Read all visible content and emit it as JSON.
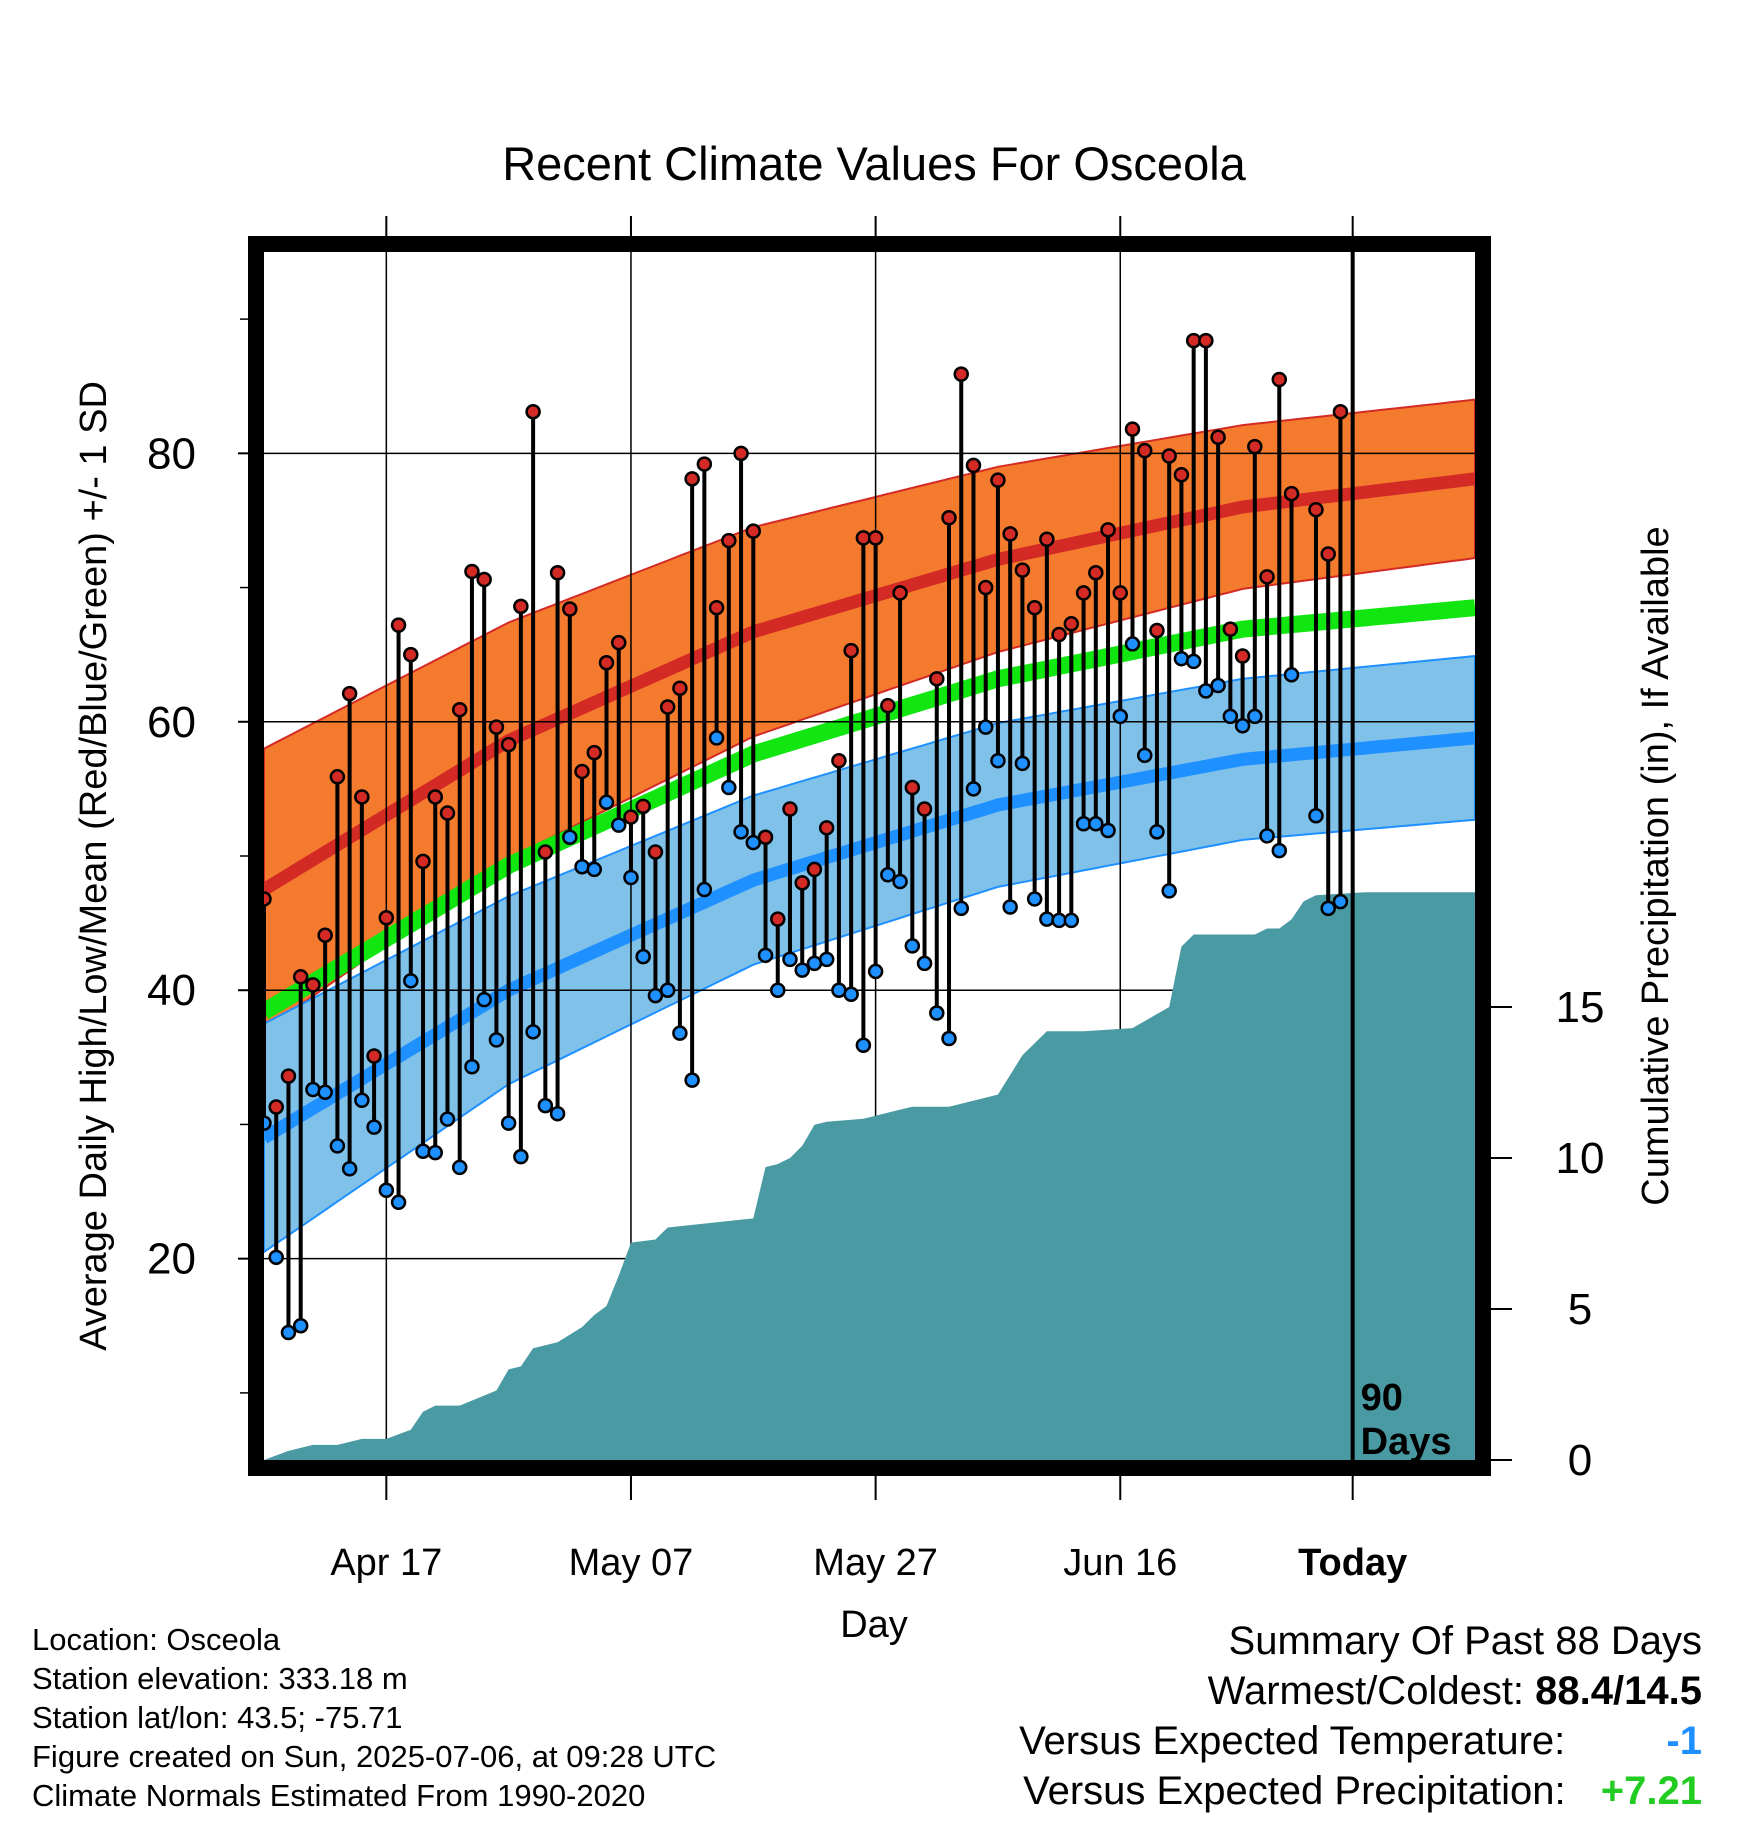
{
  "title": "Recent Climate Values For Osceola",
  "info": {
    "location": "Location: Osceola",
    "elevation": "Station elevation: 333.18 m",
    "latlon": "Station lat/lon: 43.5; -75.71",
    "created": "Figure created on Sun, 2025-07-06, at 09:28 UTC",
    "normals": "Climate Normals Estimated From 1990-2020"
  },
  "summary": {
    "heading": "Summary Of Past 88 Days",
    "warmest_coldest_label": "Warmest/Coldest:",
    "warmest_coldest_value": "88.4/14.5",
    "temp_label": "Versus Expected Temperature:",
    "temp_value": "-1",
    "temp_color": "#1e90ff",
    "precip_label": "Versus Expected Precipitation:",
    "precip_value": "+7.21",
    "precip_color": "#22cc22"
  },
  "chart_data": {
    "type": "line",
    "title": "Recent Climate Values For Osceola",
    "xlabel": "Day",
    "ylabel_left": "Average Daily High/Low/Mean (Red/Blue/Green) +/- 1 SD",
    "ylabel_right": "Cumulative Precipitation (in), If Available",
    "x_range": [
      "Apr 07",
      "Jul 15"
    ],
    "x_ticks": [
      "Apr 17",
      "May 07",
      "May 27",
      "Jun 16",
      "Today"
    ],
    "ylim_left": [
      5,
      95
    ],
    "yticks_left": [
      20,
      40,
      60,
      80
    ],
    "ylim_right": [
      0,
      40
    ],
    "yticks_right": [
      0,
      5,
      10,
      15
    ],
    "today_marker": "Today",
    "today_label": "90\nDays",
    "normals": {
      "x": [
        "Apr 07",
        "Apr 27",
        "May 17",
        "Jun 06",
        "Jun 26",
        "Jul 15"
      ],
      "high_mean": [
        47.5,
        58.6,
        66.7,
        72.1,
        76.0,
        78.1
      ],
      "high_sd": [
        10.5,
        8.8,
        7.8,
        6.9,
        6.1,
        5.9
      ],
      "mean": [
        38.4,
        49.3,
        57.6,
        63.2,
        66.9,
        68.5
      ],
      "low_mean": [
        29.0,
        40.0,
        48.2,
        53.8,
        57.2,
        58.8
      ],
      "low_sd": [
        8.5,
        7.0,
        6.3,
        6.1,
        6.0,
        6.1
      ],
      "colors": {
        "high_band": "#f47b2e",
        "high_line": "#d42a25",
        "mean": "#11e611",
        "low_band": "#80c1ea",
        "low_line": "#1e90ff",
        "precip": "#4a9aa4"
      }
    },
    "daily": {
      "start": "Apr 07",
      "high": [
        46.8,
        31.3,
        33.6,
        41.0,
        40.4,
        44.1,
        55.9,
        62.1,
        54.4,
        35.1,
        45.4,
        67.2,
        65.0,
        49.6,
        54.4,
        53.2,
        60.9,
        71.2,
        70.6,
        59.6,
        58.3,
        68.6,
        83.1,
        50.3,
        71.1,
        68.4,
        56.3,
        57.7,
        64.4,
        65.9,
        52.9,
        53.7,
        50.3,
        61.1,
        62.5,
        78.1,
        79.2,
        68.5,
        73.5,
        80.0,
        74.2,
        51.4,
        45.3,
        53.5,
        48.0,
        49.0,
        52.1,
        57.1,
        65.3,
        73.7,
        73.7,
        61.2,
        69.6,
        55.1,
        53.5,
        63.2,
        75.2,
        85.9,
        79.1,
        70.0,
        78.0,
        74.0,
        71.3,
        68.5,
        73.6,
        66.5,
        67.3,
        69.6,
        71.1,
        74.3,
        69.6,
        81.8,
        80.2,
        66.8,
        79.8,
        78.4,
        88.4,
        88.4,
        81.2,
        66.9,
        64.9,
        80.5,
        70.8,
        85.5,
        77.0,
        null,
        75.8,
        72.5,
        83.1
      ],
      "low": [
        30.1,
        20.1,
        14.5,
        15.0,
        32.6,
        32.4,
        28.4,
        26.7,
        31.8,
        29.8,
        25.1,
        24.2,
        40.7,
        28.0,
        27.9,
        30.4,
        26.8,
        34.3,
        39.3,
        36.3,
        30.1,
        27.6,
        36.9,
        31.4,
        30.8,
        51.4,
        49.2,
        49.0,
        54.0,
        52.3,
        48.4,
        42.5,
        39.6,
        40.0,
        36.8,
        33.3,
        47.5,
        58.8,
        55.1,
        51.8,
        51.0,
        42.6,
        40.0,
        42.3,
        41.5,
        42.0,
        42.3,
        40.0,
        39.7,
        35.9,
        41.4,
        48.6,
        48.1,
        43.3,
        42.0,
        38.3,
        36.4,
        46.1,
        55.0,
        59.6,
        57.1,
        46.2,
        56.9,
        46.8,
        45.3,
        45.2,
        45.2,
        52.4,
        52.4,
        51.9,
        60.4,
        65.8,
        57.5,
        51.8,
        47.4,
        64.7,
        64.5,
        62.3,
        62.7,
        60.4,
        59.7,
        60.4,
        51.5,
        50.4,
        63.5,
        null,
        53.0,
        46.1,
        46.6
      ]
    },
    "precip_cumulative": {
      "x": [
        "Apr 07",
        "Apr 09",
        "Apr 11",
        "Apr 13",
        "Apr 15",
        "Apr 17",
        "Apr 19",
        "Apr 20",
        "Apr 21",
        "Apr 23",
        "Apr 26",
        "Apr 27",
        "Apr 28",
        "Apr 29",
        "May 01",
        "May 03",
        "May 04",
        "May 05",
        "May 06",
        "May 07",
        "May 09",
        "May 10",
        "May 17",
        "May 18",
        "May 19",
        "May 20",
        "May 21",
        "May 22",
        "May 23",
        "May 26",
        "May 27",
        "May 30",
        "Jun 02",
        "Jun 06",
        "Jun 08",
        "Jun 10",
        "Jun 11",
        "Jun 13",
        "Jun 17",
        "Jun 20",
        "Jun 21",
        "Jun 22",
        "Jun 27",
        "Jun 28",
        "Jun 29",
        "Jun 30",
        "Jul 01",
        "Jul 02",
        "Jul 06",
        "Jul 15"
      ],
      "values": [
        0.0,
        0.3,
        0.5,
        0.5,
        0.7,
        0.7,
        1.0,
        1.6,
        1.8,
        1.8,
        2.3,
        3.0,
        3.1,
        3.7,
        3.9,
        4.4,
        4.8,
        5.1,
        6.1,
        7.2,
        7.3,
        7.7,
        8.0,
        9.7,
        9.8,
        10.0,
        10.4,
        11.1,
        11.2,
        11.3,
        11.4,
        11.7,
        11.7,
        12.1,
        13.4,
        14.2,
        14.2,
        14.2,
        14.3,
        15.0,
        17.0,
        17.4,
        17.4,
        17.6,
        17.6,
        17.9,
        18.5,
        18.7,
        18.8,
        18.8
      ]
    }
  }
}
